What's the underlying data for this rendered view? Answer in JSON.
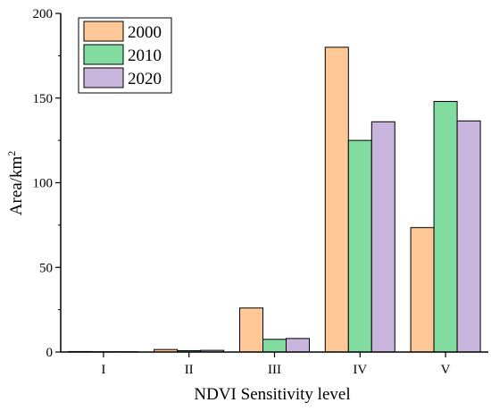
{
  "chart_data": {
    "type": "bar",
    "title": "",
    "xlabel": "NDVI Sensitivity level",
    "ylabel": "Area/km",
    "ylabel_superscript": "2",
    "categories": [
      "I",
      "II",
      "III",
      "IV",
      "V"
    ],
    "series": [
      {
        "name": "2000",
        "color": "#ffc896",
        "values": [
          0.3,
          1.5,
          26,
          180,
          73.5
        ]
      },
      {
        "name": "2010",
        "color": "#82dca0",
        "values": [
          0.2,
          0.8,
          7.5,
          125,
          148
        ]
      },
      {
        "name": "2020",
        "color": "#c8b4dc",
        "values": [
          0.2,
          1.0,
          8.0,
          136,
          136.5
        ]
      }
    ],
    "ylim": [
      0,
      200
    ],
    "yticks": [
      "0",
      "50",
      "100",
      "150",
      "200"
    ],
    "grid": false,
    "legend_position": "top-left"
  }
}
